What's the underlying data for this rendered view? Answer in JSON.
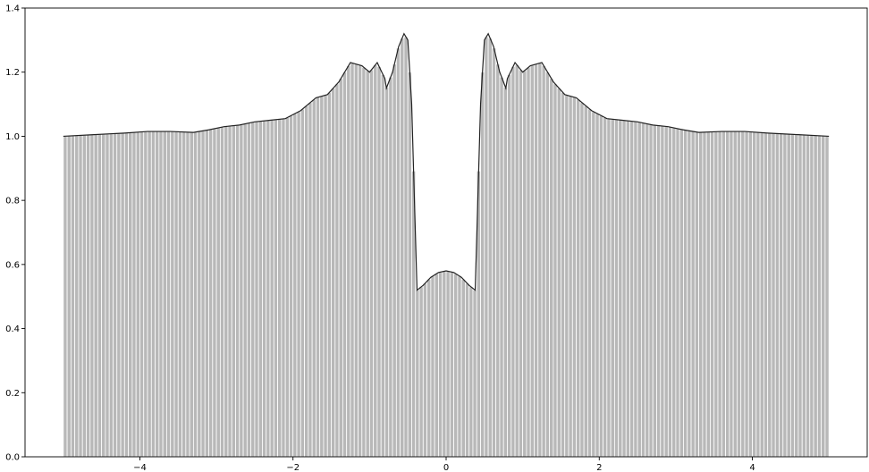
{
  "chart_data": {
    "type": "bar",
    "title": "",
    "xlabel": "",
    "ylabel": "",
    "xlim": [
      -5.5,
      5.5
    ],
    "ylim": [
      0.0,
      1.4
    ],
    "x_ticks": [
      {
        "value": -4,
        "label": "−4"
      },
      {
        "value": -2,
        "label": "−2"
      },
      {
        "value": 0,
        "label": "0"
      },
      {
        "value": 2,
        "label": "2"
      },
      {
        "value": 4,
        "label": "4"
      }
    ],
    "y_ticks": [
      {
        "value": 0.0,
        "label": "0.0"
      },
      {
        "value": 0.2,
        "label": "0.2"
      },
      {
        "value": 0.4,
        "label": "0.4"
      },
      {
        "value": 0.6,
        "label": "0.6"
      },
      {
        "value": 0.8,
        "label": "0.8"
      },
      {
        "value": 1.0,
        "label": "1.0"
      },
      {
        "value": 1.2,
        "label": "1.2"
      },
      {
        "value": 1.4,
        "label": "1.4"
      }
    ],
    "bar_range": [
      -5.0,
      5.0
    ],
    "bar_count": 200,
    "bar_color": "#b8b8b8",
    "bar_edge_color": "#ffffff",
    "line_color": "#222222",
    "curve": {
      "x": [
        -5.0,
        -4.6,
        -4.2,
        -3.9,
        -3.6,
        -3.3,
        -3.1,
        -2.9,
        -2.7,
        -2.5,
        -2.3,
        -2.1,
        -1.9,
        -1.7,
        -1.55,
        -1.4,
        -1.25,
        -1.1,
        -1.0,
        -0.9,
        -0.8,
        -0.78,
        -0.7,
        -0.62,
        -0.55,
        -0.5,
        -0.45,
        -0.42,
        -0.38,
        -0.3,
        -0.2,
        -0.1,
        0.0,
        0.1,
        0.2,
        0.3,
        0.38,
        0.42,
        0.45,
        0.5,
        0.55,
        0.62,
        0.7,
        0.78,
        0.8,
        0.9,
        1.0,
        1.1,
        1.25,
        1.4,
        1.55,
        1.7,
        1.9,
        2.1,
        2.3,
        2.5,
        2.7,
        2.9,
        3.1,
        3.3,
        3.6,
        3.9,
        4.2,
        4.6,
        5.0
      ],
      "y": [
        1.0,
        1.005,
        1.01,
        1.015,
        1.015,
        1.012,
        1.02,
        1.03,
        1.035,
        1.045,
        1.05,
        1.055,
        1.08,
        1.12,
        1.13,
        1.17,
        1.23,
        1.22,
        1.2,
        1.23,
        1.18,
        1.15,
        1.2,
        1.28,
        1.32,
        1.3,
        1.1,
        0.85,
        0.52,
        0.535,
        0.56,
        0.575,
        0.58,
        0.575,
        0.56,
        0.535,
        0.52,
        0.85,
        1.1,
        1.3,
        1.32,
        1.28,
        1.2,
        1.15,
        1.18,
        1.23,
        1.2,
        1.22,
        1.23,
        1.17,
        1.13,
        1.12,
        1.08,
        1.055,
        1.05,
        1.045,
        1.035,
        1.03,
        1.02,
        1.012,
        1.015,
        1.015,
        1.01,
        1.005,
        1.0
      ]
    }
  }
}
